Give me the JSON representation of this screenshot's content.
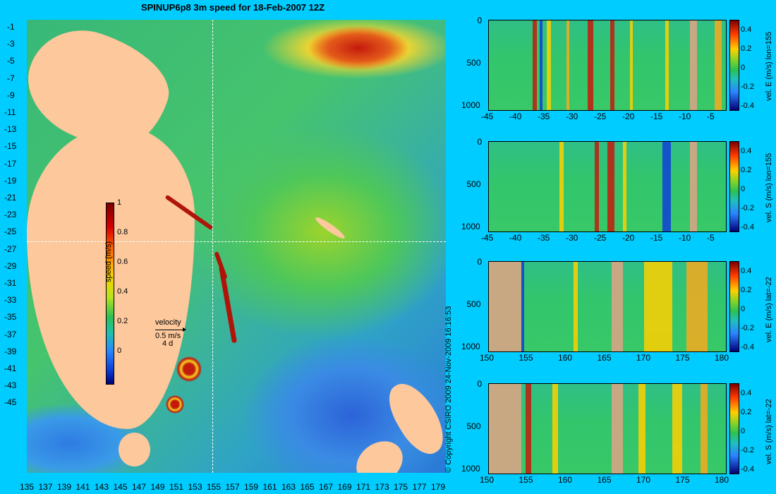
{
  "title": "SPINUP6p8 3m speed for 18-Feb-2007 12Z",
  "map": {
    "y_ticks": [
      "-1",
      "-3",
      "-5",
      "-7",
      "-9",
      "-11",
      "-13",
      "-15",
      "-17",
      "-19",
      "-21",
      "-23",
      "-25",
      "-27",
      "-29",
      "-31",
      "-33",
      "-35",
      "-37",
      "-39",
      "-41",
      "-43",
      "-45"
    ],
    "x_ticks": [
      "135",
      "137",
      "139",
      "141",
      "143",
      "145",
      "147",
      "149",
      "151",
      "153",
      "155",
      "157",
      "159",
      "161",
      "163",
      "165",
      "167",
      "169",
      "171",
      "173",
      "175",
      "177",
      "179"
    ],
    "lon_range": [
      135,
      180
    ],
    "lat_range": [
      -45,
      0
    ],
    "section_lon": 155,
    "section_lat": -22,
    "colorbar": {
      "title": "speed (m/s)",
      "ticks": [
        "1",
        "0.8",
        "0.6",
        "0.4",
        "0.2",
        "0"
      ],
      "range": [
        -0.1,
        1
      ]
    },
    "velocity_key": {
      "title": "velocity",
      "speed": "0.5 m/s",
      "time": "4 d"
    },
    "colors": {
      "land": "#fcc89c",
      "background": "#00ccff"
    }
  },
  "copyright": "© Copyright CSIRO 2009   24-Nov-2009 16:16:53",
  "sections": [
    {
      "label": "vel. E (m/s) lon=155",
      "x_ticks": [
        "-45",
        "-40",
        "-35",
        "-30",
        "-25",
        "-20",
        "-15",
        "-10",
        "-5"
      ],
      "y_ticks": [
        "0",
        "500",
        "1000"
      ],
      "cbar_ticks": [
        "0.4",
        "0.2",
        "0",
        "-0.2",
        "-0.4"
      ]
    },
    {
      "label": "vel. S (m/s) lon=155",
      "x_ticks": [
        "-45",
        "-40",
        "-35",
        "-30",
        "-25",
        "-20",
        "-15",
        "-10",
        "-5"
      ],
      "y_ticks": [
        "0",
        "500",
        "1000"
      ],
      "cbar_ticks": [
        "0.4",
        "0.2",
        "0",
        "-0.2",
        "-0.4"
      ]
    },
    {
      "label": "vel. E (m/s) lat=-22",
      "x_ticks": [
        "150",
        "155",
        "160",
        "165",
        "170",
        "175",
        "180"
      ],
      "y_ticks": [
        "0",
        "500",
        "1000"
      ],
      "cbar_ticks": [
        "0.4",
        "0.2",
        "0",
        "-0.2",
        "-0.4"
      ]
    },
    {
      "label": "vel. S (m/s) lat=-22",
      "x_ticks": [
        "150",
        "155",
        "160",
        "165",
        "170",
        "175",
        "180"
      ],
      "y_ticks": [
        "0",
        "500",
        "1000"
      ],
      "cbar_ticks": [
        "0.4",
        "0.2",
        "0",
        "-0.2",
        "-0.4"
      ]
    }
  ]
}
